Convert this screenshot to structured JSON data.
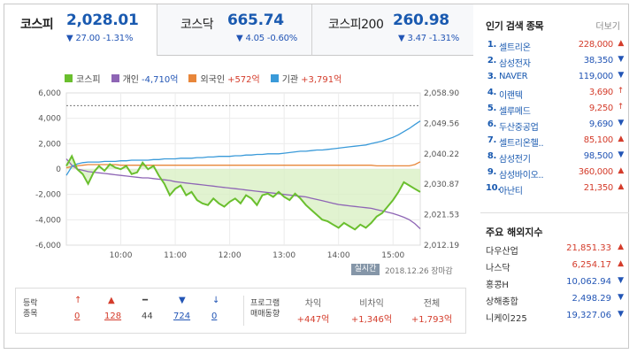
{
  "tabs": [
    {
      "name": "코스피",
      "value": "2,028.01",
      "change": "▼ 27.00 -1.31%"
    },
    {
      "name": "코스닥",
      "value": "665.74",
      "change": "▼ 4.05 -0.60%"
    },
    {
      "name": "코스피200",
      "value": "260.98",
      "change": "▼ 3.47 -1.31%"
    }
  ],
  "legend": [
    {
      "label": "코스피",
      "value": "",
      "color": "#6abf2e"
    },
    {
      "label": "개인",
      "value": "-4,710억",
      "color": "#8e65b5"
    },
    {
      "label": "외국인",
      "value": "+572억",
      "color": "#e8863a"
    },
    {
      "label": "기관",
      "value": "+3,791억",
      "color": "#3a9ad9"
    }
  ],
  "chart_data": {
    "type": "line",
    "title": "",
    "left_axis_ticks": [
      "6,000",
      "4,000",
      "2,000",
      "0",
      "-2,000",
      "-4,000",
      "-6,000"
    ],
    "right_axis_ticks": [
      "2,058.90",
      "2,049.56",
      "2,040.22",
      "2,030.87",
      "2,021.53",
      "2,012.19"
    ],
    "x_ticks": [
      "10:00",
      "11:00",
      "12:00",
      "13:00",
      "14:00",
      "15:00"
    ],
    "ylim_left": [
      -6000,
      6000
    ],
    "ylim_right": [
      2012.19,
      2058.9
    ],
    "prev_close_reference": 2055.01,
    "x_hours": [
      9.0,
      9.1,
      9.2,
      9.3,
      9.4,
      9.5,
      9.6,
      9.7,
      9.8,
      9.9,
      10.0,
      10.1,
      10.2,
      10.3,
      10.4,
      10.5,
      10.6,
      10.7,
      10.8,
      10.9,
      11.0,
      11.1,
      11.2,
      11.3,
      11.4,
      11.5,
      11.6,
      11.7,
      11.8,
      11.9,
      12.0,
      12.1,
      12.2,
      12.3,
      12.4,
      12.5,
      12.6,
      12.7,
      12.8,
      12.9,
      13.0,
      13.1,
      13.2,
      13.3,
      13.4,
      13.5,
      13.6,
      13.7,
      13.8,
      13.9,
      14.0,
      14.1,
      14.2,
      14.3,
      14.4,
      14.5,
      14.6,
      14.7,
      14.8,
      14.9,
      15.0,
      15.1,
      15.2,
      15.3,
      15.4,
      15.5
    ],
    "series": [
      {
        "name": "코스피",
        "axis": "right",
        "fill": true,
        "values": [
          2036.5,
          2039.5,
          2035.5,
          2034.0,
          2031.0,
          2034.5,
          2036.5,
          2035.0,
          2037.0,
          2036.0,
          2035.5,
          2036.5,
          2034.0,
          2034.5,
          2037.5,
          2035.5,
          2036.5,
          2033.5,
          2031.0,
          2027.5,
          2029.5,
          2030.5,
          2027.5,
          2028.5,
          2026.0,
          2025.0,
          2024.5,
          2026.5,
          2025.0,
          2024.0,
          2025.5,
          2026.5,
          2025.0,
          2027.5,
          2026.5,
          2024.5,
          2027.5,
          2028.0,
          2027.0,
          2028.5,
          2027.0,
          2026.0,
          2028.0,
          2026.5,
          2024.5,
          2023.0,
          2021.5,
          2020.0,
          2019.5,
          2018.5,
          2017.5,
          2019.0,
          2018.0,
          2017.0,
          2018.5,
          2017.5,
          2019.0,
          2021.0,
          2022.0,
          2024.0,
          2026.0,
          2028.5,
          2031.5,
          2030.5,
          2029.5,
          2028.5
        ]
      },
      {
        "name": "개인",
        "axis": "left",
        "values": [
          800,
          300,
          0,
          -100,
          -200,
          -250,
          -300,
          -350,
          -400,
          -450,
          -500,
          -550,
          -600,
          -650,
          -700,
          -700,
          -750,
          -800,
          -850,
          -900,
          -1000,
          -1050,
          -1100,
          -1150,
          -1200,
          -1250,
          -1300,
          -1350,
          -1400,
          -1450,
          -1500,
          -1550,
          -1600,
          -1650,
          -1700,
          -1750,
          -1800,
          -1850,
          -1900,
          -1950,
          -2000,
          -2050,
          -2100,
          -2150,
          -2200,
          -2300,
          -2400,
          -2500,
          -2600,
          -2700,
          -2800,
          -2850,
          -2900,
          -2950,
          -3000,
          -3050,
          -3100,
          -3200,
          -3300,
          -3400,
          -3500,
          -3650,
          -3800,
          -4000,
          -4300,
          -4710
        ]
      },
      {
        "name": "외국인",
        "axis": "left",
        "values": [
          100,
          200,
          250,
          300,
          350,
          350,
          350,
          350,
          350,
          350,
          300,
          300,
          300,
          300,
          300,
          300,
          300,
          300,
          300,
          300,
          300,
          300,
          300,
          300,
          300,
          300,
          300,
          300,
          300,
          300,
          300,
          300,
          300,
          300,
          300,
          300,
          300,
          300,
          300,
          300,
          300,
          300,
          300,
          300,
          300,
          300,
          300,
          300,
          300,
          300,
          300,
          300,
          300,
          300,
          300,
          300,
          300,
          250,
          250,
          250,
          250,
          250,
          250,
          250,
          350,
          572
        ]
      },
      {
        "name": "기관",
        "axis": "left",
        "values": [
          -500,
          200,
          400,
          500,
          550,
          550,
          550,
          600,
          600,
          600,
          650,
          650,
          700,
          700,
          700,
          700,
          750,
          750,
          800,
          800,
          800,
          850,
          850,
          850,
          900,
          900,
          950,
          950,
          1000,
          1000,
          1000,
          1050,
          1050,
          1100,
          1100,
          1150,
          1150,
          1200,
          1200,
          1200,
          1250,
          1300,
          1350,
          1400,
          1400,
          1450,
          1500,
          1500,
          1550,
          1600,
          1650,
          1700,
          1750,
          1800,
          1850,
          1900,
          2000,
          2100,
          2200,
          2350,
          2500,
          2700,
          2950,
          3200,
          3500,
          3791
        ]
      }
    ]
  },
  "status": {
    "live": "실시간",
    "timestamp": "2018.12.26  장마감"
  },
  "breadth": {
    "label": "등락\n종목",
    "items": [
      {
        "icon": "↑",
        "count": "0",
        "color": "#d43c2b"
      },
      {
        "icon": "▲",
        "count": "128",
        "color": "#d43c2b"
      },
      {
        "icon": "━",
        "count": "44",
        "color": "#444444"
      },
      {
        "icon": "▼",
        "count": "724",
        "color": "#2255b5"
      },
      {
        "icon": "↓",
        "count": "0",
        "color": "#2255b5"
      }
    ]
  },
  "program": {
    "label": "프로그램\n매매동향",
    "items": [
      {
        "head": "차익",
        "value": "+447억"
      },
      {
        "head": "비차익",
        "value": "+1,346억"
      },
      {
        "head": "전체",
        "value": "+1,793억"
      }
    ]
  },
  "popular": {
    "title": "인기 검색 종목",
    "more": "더보기",
    "items": [
      {
        "rank": "1.",
        "name": "셀트리온",
        "price": "228,000",
        "dir": "up",
        "arrow": "▲"
      },
      {
        "rank": "2.",
        "name": "삼성전자",
        "price": "38,350",
        "dir": "down",
        "arrow": "▼"
      },
      {
        "rank": "3.",
        "name": "NAVER",
        "price": "119,000",
        "dir": "down",
        "arrow": "▼"
      },
      {
        "rank": "4.",
        "name": "이랜텍",
        "price": "3,690",
        "dir": "up",
        "arrow": "↑"
      },
      {
        "rank": "5.",
        "name": "셀루메드",
        "price": "9,250",
        "dir": "up",
        "arrow": "↑"
      },
      {
        "rank": "6.",
        "name": "두산중공업",
        "price": "9,690",
        "dir": "down",
        "arrow": "▼"
      },
      {
        "rank": "7.",
        "name": "셀트리온헬..",
        "price": "85,100",
        "dir": "up",
        "arrow": "▲"
      },
      {
        "rank": "8.",
        "name": "삼성전기",
        "price": "98,500",
        "dir": "down",
        "arrow": "▼"
      },
      {
        "rank": "9.",
        "name": "삼성바이오..",
        "price": "360,000",
        "dir": "up",
        "arrow": "▲"
      },
      {
        "rank": "10.",
        "name": "아난티",
        "price": "21,350",
        "dir": "up",
        "arrow": "▲"
      }
    ]
  },
  "overseas": {
    "title": "주요 해외지수",
    "items": [
      {
        "name": "다우산업",
        "price": "21,851.33",
        "dir": "up",
        "arrow": "▲"
      },
      {
        "name": "나스닥",
        "price": "6,254.17",
        "dir": "up",
        "arrow": "▲"
      },
      {
        "name": "홍콩H",
        "price": "10,062.94",
        "dir": "down",
        "arrow": "▼"
      },
      {
        "name": "상해종합",
        "price": "2,498.29",
        "dir": "down",
        "arrow": "▼"
      },
      {
        "name": "니케이225",
        "price": "19,327.06",
        "dir": "down",
        "arrow": "▼"
      }
    ]
  }
}
